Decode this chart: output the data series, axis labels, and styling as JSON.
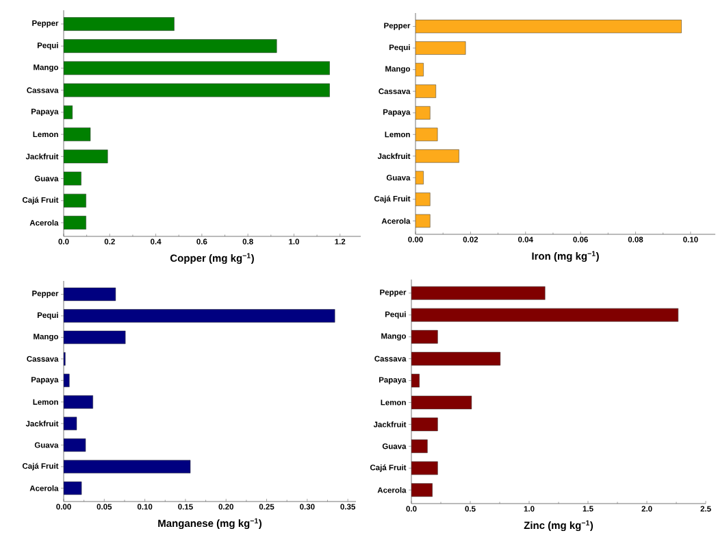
{
  "chart_data": [
    {
      "type": "bar",
      "orientation": "horizontal",
      "xlabel": "Copper (mg kg$^{−1}$)",
      "categories": [
        "Pepper",
        "Pequi",
        "Mango",
        "Cassava",
        "Papaya",
        "Lemon",
        "Jackfruit",
        "Guava",
        "Cajá Fruit",
        "Acerola"
      ],
      "color": "#008000",
      "values": [
        0.48,
        0.925,
        1.155,
        1.155,
        0.038,
        0.116,
        0.191,
        0.076,
        0.097,
        0.097
      ],
      "xlim": [
        0,
        1.29
      ],
      "xticks": [
        {
          "value": 0,
          "label": "0.0"
        },
        0.2,
        0.4,
        0.6,
        0.8,
        {
          "value": 1,
          "label": "1.0"
        },
        1.2
      ]
    },
    {
      "type": "bar",
      "orientation": "horizontal",
      "xlabel": "Iron (mg kg$^{−1}$)",
      "categories": [
        "Pepper",
        "Pequi",
        "Mango",
        "Cassava",
        "Papaya",
        "Lemon",
        "Jackfruit",
        "Guava",
        "Cajá Fruit",
        "Acerola"
      ],
      "color": "#fdaa1b",
      "values": [
        0.0967,
        0.0182,
        0.0029,
        0.0074,
        0.0053,
        0.008,
        0.0158,
        0.0029,
        0.0053,
        0.0053
      ],
      "xlim": [
        0,
        0.109
      ],
      "xticks": [
        {
          "value": 0,
          "label": "0.00"
        },
        0.02,
        0.04,
        0.06,
        0.08,
        {
          "value": 0.1,
          "label": "0.10"
        }
      ]
    },
    {
      "type": "bar",
      "orientation": "horizontal",
      "xlabel": "Manganese (mg kg$^{−1}$)",
      "categories": [
        "Pepper",
        "Pequi",
        "Mango",
        "Cassava",
        "Papaya",
        "Lemon",
        "Jackfruit",
        "Guava",
        "Cajá Fruit",
        "Acerola"
      ],
      "color": "#000080",
      "values": [
        0.064,
        0.334,
        0.076,
        0.002,
        0.007,
        0.036,
        0.016,
        0.027,
        0.156,
        0.022
      ],
      "xlim": [
        0,
        0.36
      ],
      "xticks": [
        {
          "value": 0,
          "label": "0.00"
        },
        0.05,
        {
          "value": 0.1,
          "label": "0.10"
        },
        0.15,
        {
          "value": 0.2,
          "label": "0.20"
        },
        0.25,
        {
          "value": 0.3,
          "label": "0.30"
        },
        0.35
      ]
    },
    {
      "type": "bar",
      "orientation": "horizontal",
      "xlabel": "Zinc (mg kg$^{−1}$)",
      "categories": [
        "Pepper",
        "Pequi",
        "Mango",
        "Cassava",
        "Papaya",
        "Lemon",
        "Jackfruit",
        "Guava",
        "Cajá Fruit",
        "Acerola"
      ],
      "color": "#800000",
      "values": [
        1.135,
        2.266,
        0.223,
        0.755,
        0.068,
        0.511,
        0.223,
        0.136,
        0.223,
        0.178
      ],
      "xlim": [
        0,
        2.5
      ],
      "xticks": [
        {
          "value": 0,
          "label": "0.0"
        },
        0.5,
        {
          "value": 1,
          "label": "1.0"
        },
        1.5,
        {
          "value": 2,
          "label": "2.0"
        },
        2.5
      ]
    }
  ]
}
